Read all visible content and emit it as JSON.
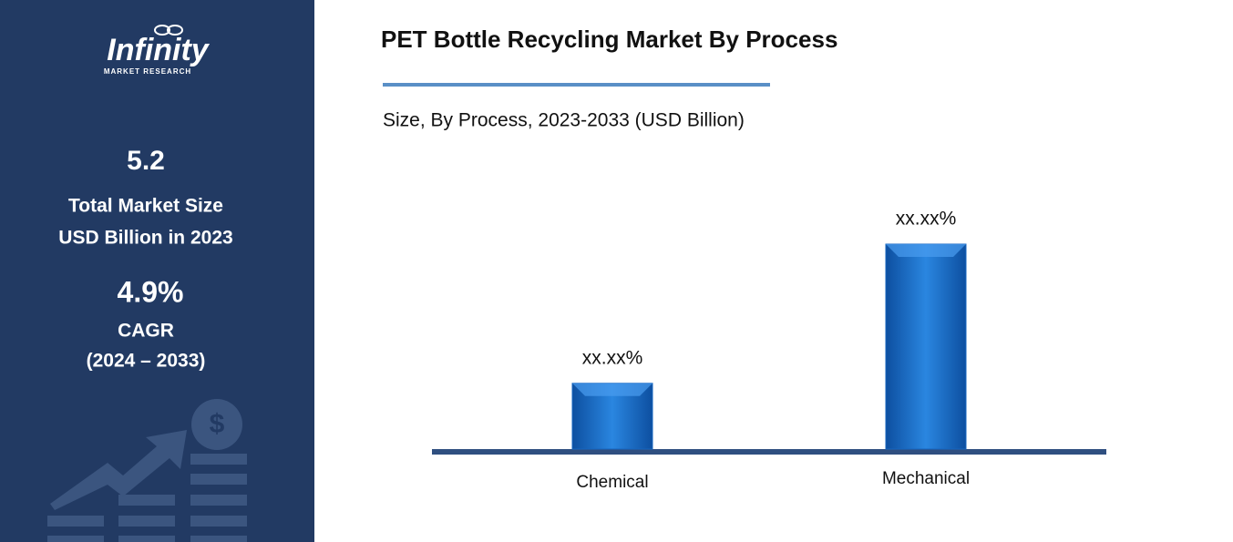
{
  "sidebar": {
    "logo": "Infinity",
    "logo_subtitle": "MARKET RESEARCH",
    "market_size": "5.2",
    "market_size_label_1": "Total Market Size",
    "market_size_label_2": "USD Billion in 2023",
    "cagr": "4.9%",
    "cagr_label": "CAGR",
    "cagr_period": "(2024 – 2033)"
  },
  "chart_data": {
    "type": "bar",
    "title": "PET Bottle Recycling Market By Process",
    "subtitle": "Size, By Process, 2023-2033 (USD Billion)",
    "categories": [
      "Chemical",
      "Mechanical"
    ],
    "values": [
      24.3,
      75.7
    ],
    "value_labels": [
      "xx.xx%",
      "xx.xx%"
    ],
    "color": "#1565c0"
  }
}
